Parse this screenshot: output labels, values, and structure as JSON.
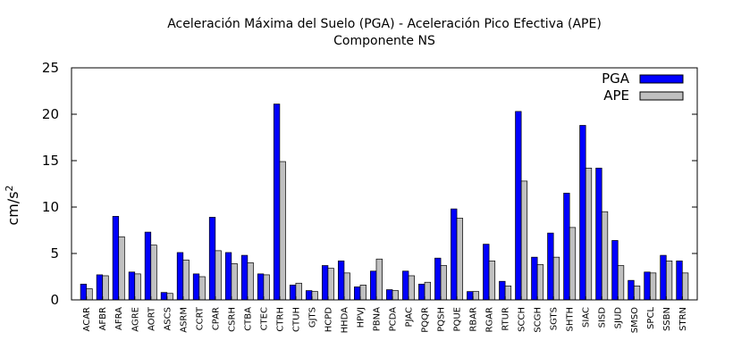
{
  "chart_data": {
    "type": "bar",
    "title": "Aceleración Máxima del Suelo (PGA) -   Aceleración Pico Efectiva (APE)",
    "subtitle": "Componente NS",
    "xlabel": "",
    "ylabel": "cm/s",
    "ylabel_superscript": "2",
    "ylim": [
      0,
      25
    ],
    "yticks": [
      0,
      5,
      10,
      15,
      20,
      25
    ],
    "grid": false,
    "legend_position": "top-right",
    "categories": [
      "ACAR",
      "AFBR",
      "AFRA",
      "AGRE",
      "AORT",
      "ASCS",
      "ASRM",
      "CCRT",
      "CPAR",
      "CSRH",
      "CTBA",
      "CTEC",
      "CTRH",
      "CTUH",
      "GJTS",
      "HCPD",
      "HHDA",
      "HPVJ",
      "PBNA",
      "PCDA",
      "PJAC",
      "PQQR",
      "PQSH",
      "PQUE",
      "RBAR",
      "RGAR",
      "RTUR",
      "SCCH",
      "SCGH",
      "SGTS",
      "SHTH",
      "SIAC",
      "SISD",
      "SJUD",
      "SMSO",
      "SPCL",
      "SSBN",
      "STRN"
    ],
    "series": [
      {
        "name": "PGA",
        "color": "#0000ff",
        "values": [
          1.7,
          2.7,
          9.0,
          3.0,
          7.3,
          0.8,
          5.1,
          2.8,
          8.9,
          5.1,
          4.8,
          2.8,
          21.1,
          1.6,
          1.0,
          3.7,
          4.2,
          1.4,
          3.1,
          1.1,
          3.1,
          1.7,
          4.5,
          9.8,
          0.9,
          6.0,
          2.0,
          20.3,
          4.6,
          7.2,
          11.5,
          18.8,
          14.2,
          6.4,
          2.1,
          3.0,
          4.8,
          4.2
        ]
      },
      {
        "name": "APE",
        "color": "#c0c0c0",
        "values": [
          1.2,
          2.6,
          6.8,
          2.8,
          5.9,
          0.7,
          4.3,
          2.5,
          5.3,
          3.9,
          4.0,
          2.7,
          14.9,
          1.8,
          0.9,
          3.4,
          2.9,
          1.6,
          4.4,
          1.0,
          2.6,
          1.9,
          3.7,
          8.8,
          0.9,
          4.2,
          1.5,
          12.8,
          3.8,
          4.6,
          7.8,
          14.2,
          9.5,
          3.7,
          1.5,
          2.9,
          4.2,
          2.9
        ]
      }
    ]
  }
}
